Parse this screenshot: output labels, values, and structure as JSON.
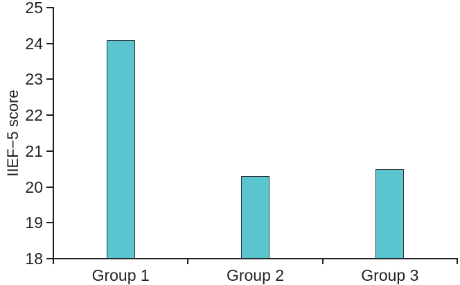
{
  "chart_data": {
    "type": "bar",
    "title": "",
    "categories": [
      "Group 1",
      "Group 2",
      "Group 3"
    ],
    "values": [
      24.1,
      20.3,
      20.5
    ],
    "xlabel": "",
    "ylabel": "IIEF−5 score",
    "ylim": [
      18,
      25
    ],
    "yticks": [
      18,
      19,
      20,
      21,
      22,
      23,
      24,
      25
    ],
    "grid": false,
    "legend": null,
    "bar_color": "#5bc5cf",
    "bar_border_color": "#263335",
    "axis_color": "#231f20",
    "text_color": "#231f20",
    "background_color": "#ffffff"
  }
}
